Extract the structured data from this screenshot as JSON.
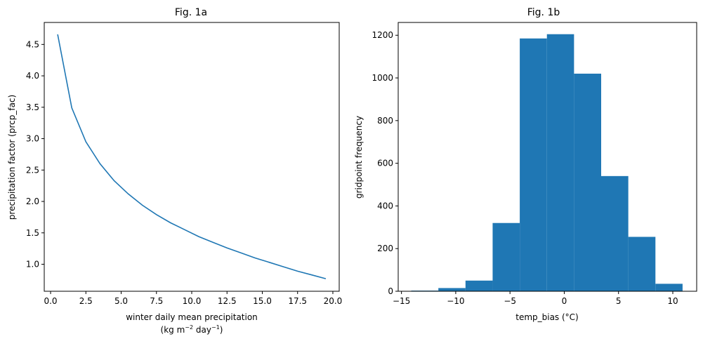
{
  "chart_data": [
    {
      "type": "line",
      "title": "Fig. 1a",
      "xlabel_line1": "winter daily mean precipitation",
      "xlabel_line2": {
        "prefix": "(kg m",
        "exp1": "−2",
        "middle": " day",
        "exp2": "−1",
        "suffix": ")"
      },
      "ylabel": "precipitation factor (prcp_fac)",
      "xlim": [
        -0.45,
        20.45
      ],
      "ylim": [
        0.57,
        4.85
      ],
      "xticks": [
        0.0,
        2.5,
        5.0,
        7.5,
        10.0,
        12.5,
        15.0,
        17.5,
        20.0
      ],
      "xtick_labels": [
        "0.0",
        "2.5",
        "5.0",
        "7.5",
        "10.0",
        "12.5",
        "15.0",
        "17.5",
        "20.0"
      ],
      "yticks": [
        1.0,
        1.5,
        2.0,
        2.5,
        3.0,
        3.5,
        4.0,
        4.5
      ],
      "ytick_labels": [
        "1.0",
        "1.5",
        "2.0",
        "2.5",
        "3.0",
        "3.5",
        "4.0",
        "4.5"
      ],
      "color": "#1f77b4",
      "series": [
        {
          "x": [
            0.5,
            1.5,
            2.5,
            3.5,
            4.5,
            5.5,
            6.5,
            7.5,
            8.5,
            9.5,
            10.5,
            11.5,
            12.5,
            13.5,
            14.5,
            15.5,
            16.5,
            17.5,
            18.5,
            19.5
          ],
          "y": [
            4.66,
            3.49,
            2.95,
            2.6,
            2.33,
            2.12,
            1.94,
            1.79,
            1.66,
            1.55,
            1.44,
            1.35,
            1.26,
            1.18,
            1.1,
            1.03,
            0.96,
            0.89,
            0.83,
            0.77
          ]
        }
      ]
    },
    {
      "type": "bar",
      "subtype": "histogram",
      "title": "Fig. 1b",
      "xlabel": "temp_bias (°C)",
      "ylabel": "gridpoint frequency",
      "xlim": [
        -15.3,
        12.2
      ],
      "ylim": [
        0,
        1260
      ],
      "xticks": [
        -15,
        -10,
        -5,
        0,
        5,
        10
      ],
      "xtick_labels": [
        "−15",
        "−10",
        "−5",
        "0",
        "5",
        "10"
      ],
      "yticks": [
        0,
        200,
        400,
        600,
        800,
        1000,
        1200
      ],
      "ytick_labels": [
        "0",
        "200",
        "400",
        "600",
        "800",
        "1000",
        "1200"
      ],
      "color": "#1f77b4",
      "bin_edges": [
        -14.1,
        -11.6,
        -9.1,
        -6.6,
        -4.1,
        -1.6,
        0.9,
        3.4,
        5.9,
        8.4,
        10.9
      ],
      "values": [
        3,
        15,
        50,
        320,
        1185,
        1205,
        1020,
        540,
        255,
        35
      ]
    }
  ]
}
